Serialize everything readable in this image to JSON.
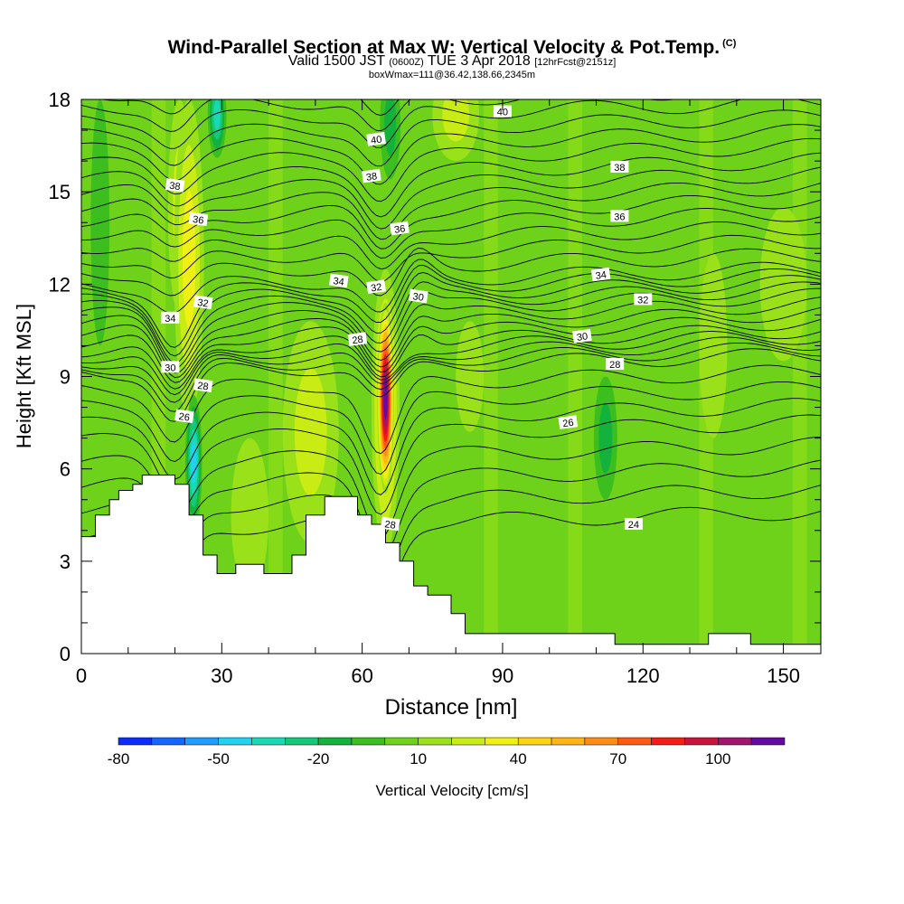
{
  "header": {
    "title": "Wind-Parallel Section at Max W: Vertical Velocity & Pot.Temp.",
    "title_mark": "(C)",
    "valid_prefix": "Valid 1500 JST",
    "valid_utc": "(0600Z)",
    "valid_date": "TUE 3 Apr 2018",
    "forecast_info": "[12hrFcst@2151z]",
    "box_info": "boxWmax=111@36.42,138.66,2345m"
  },
  "chart_data": {
    "type": "heatmap",
    "title": "Wind-Parallel Section at Max W: Vertical Velocity & Pot.Temp.",
    "xlabel": "Distance [nm]",
    "ylabel": "Height [Kft MSL]",
    "xlim": [
      0,
      158
    ],
    "ylim": [
      0,
      18
    ],
    "x_ticks": [
      0,
      30,
      60,
      90,
      120,
      150
    ],
    "y_ticks": [
      0,
      3,
      6,
      9,
      12,
      15,
      18
    ],
    "colorbar": {
      "label": "Vertical Velocity [cm/s]",
      "tick_labels": [
        "-80",
        "-50",
        "-20",
        "10",
        "40",
        "70",
        "100"
      ],
      "tick_values": [
        -80,
        -50,
        -20,
        10,
        40,
        70,
        100
      ],
      "min": -80,
      "max": 120,
      "step": 10,
      "colors": [
        "#0a2cff",
        "#1466ff",
        "#1e9cff",
        "#1fd2f0",
        "#19d9b4",
        "#14c87a",
        "#13b23c",
        "#3cbe1e",
        "#6ed21a",
        "#9ae11a",
        "#c8ec14",
        "#f0f014",
        "#ffd214",
        "#ffb414",
        "#ff8c14",
        "#ff5a14",
        "#f01e14",
        "#c8143c",
        "#a0146e",
        "#640aa0"
      ]
    },
    "background_w": 5,
    "terrain": [
      [
        0,
        3.8
      ],
      [
        3,
        3.8
      ],
      [
        3,
        4.5
      ],
      [
        6,
        4.5
      ],
      [
        6,
        5.0
      ],
      [
        8,
        5.0
      ],
      [
        8,
        5.3
      ],
      [
        11,
        5.3
      ],
      [
        11,
        5.5
      ],
      [
        13,
        5.5
      ],
      [
        13,
        5.8
      ],
      [
        20,
        5.8
      ],
      [
        20,
        5.5
      ],
      [
        23,
        5.5
      ],
      [
        23,
        4.5
      ],
      [
        26,
        4.5
      ],
      [
        26,
        3.2
      ],
      [
        29,
        3.2
      ],
      [
        29,
        2.6
      ],
      [
        33,
        2.6
      ],
      [
        33,
        2.9
      ],
      [
        39,
        2.9
      ],
      [
        39,
        2.6
      ],
      [
        45,
        2.6
      ],
      [
        45,
        3.2
      ],
      [
        48,
        3.2
      ],
      [
        48,
        4.5
      ],
      [
        52,
        4.5
      ],
      [
        52,
        5.1
      ],
      [
        59,
        5.1
      ],
      [
        59,
        4.5
      ],
      [
        62,
        4.5
      ],
      [
        62,
        4.2
      ],
      [
        65,
        4.2
      ],
      [
        65,
        3.6
      ],
      [
        68,
        3.6
      ],
      [
        68,
        3.0
      ],
      [
        71,
        3.0
      ],
      [
        71,
        2.2
      ],
      [
        74,
        2.2
      ],
      [
        74,
        1.9
      ],
      [
        79,
        1.9
      ],
      [
        79,
        1.3
      ],
      [
        82,
        1.3
      ],
      [
        82,
        0.65
      ],
      [
        114,
        0.65
      ],
      [
        114,
        0.3
      ],
      [
        134,
        0.3
      ],
      [
        134,
        0.65
      ],
      [
        143,
        0.65
      ],
      [
        143,
        0.3
      ],
      [
        158,
        0.3
      ]
    ],
    "w_features": [
      {
        "x": 65,
        "y": 8.3,
        "rx": 1.8,
        "ry": 3.1,
        "w": 120
      },
      {
        "x": 65,
        "y": 7.9,
        "rx": 3.0,
        "ry": 4.6,
        "w": 50
      },
      {
        "x": 49,
        "y": 7.2,
        "rx": 6.0,
        "ry": 3.6,
        "w": 30
      },
      {
        "x": 23,
        "y": 12.8,
        "rx": 3.2,
        "ry": 5.2,
        "w": 40
      },
      {
        "x": 21,
        "y": 14.5,
        "rx": 2.5,
        "ry": 3.5,
        "w": 25
      },
      {
        "x": 24,
        "y": 6.2,
        "rx": 1.8,
        "ry": 2.2,
        "w": -50
      },
      {
        "x": 29,
        "y": 17.5,
        "rx": 2.0,
        "ry": 1.4,
        "w": -40
      },
      {
        "x": 66,
        "y": 17.2,
        "rx": 2.2,
        "ry": 1.8,
        "w": -20
      },
      {
        "x": 4,
        "y": 14,
        "rx": 2.0,
        "ry": 4.0,
        "w": -10
      },
      {
        "x": 80,
        "y": 17.5,
        "rx": 5.0,
        "ry": 1.5,
        "w": 30
      },
      {
        "x": 83,
        "y": 9,
        "rx": 3.0,
        "ry": 1.8,
        "w": 20
      },
      {
        "x": 112,
        "y": 7.0,
        "rx": 2.5,
        "ry": 2.0,
        "w": -15
      },
      {
        "x": 36,
        "y": 4.5,
        "rx": 4.0,
        "ry": 2.5,
        "w": 15
      },
      {
        "x": 135,
        "y": 10,
        "rx": 3.0,
        "ry": 3.0,
        "w": 15
      },
      {
        "x": 150,
        "y": 12,
        "rx": 5.0,
        "ry": 2.5,
        "w": 15
      }
    ],
    "theta_levels": [
      24,
      26,
      28,
      30,
      32,
      34,
      36,
      38,
      40
    ],
    "theta_labels": [
      {
        "text": "40",
        "x": 63,
        "y": 16.7
      },
      {
        "text": "40",
        "x": 90,
        "y": 17.6
      },
      {
        "text": "38",
        "x": 20,
        "y": 15.2
      },
      {
        "text": "38",
        "x": 62,
        "y": 15.5
      },
      {
        "text": "38",
        "x": 115,
        "y": 15.8
      },
      {
        "text": "36",
        "x": 25,
        "y": 14.1
      },
      {
        "text": "36",
        "x": 68,
        "y": 13.8
      },
      {
        "text": "36",
        "x": 115,
        "y": 14.2
      },
      {
        "text": "34",
        "x": 55,
        "y": 12.1
      },
      {
        "text": "34",
        "x": 111,
        "y": 12.3
      },
      {
        "text": "34",
        "x": 19,
        "y": 10.9
      },
      {
        "text": "32",
        "x": 26,
        "y": 11.4
      },
      {
        "text": "32",
        "x": 63,
        "y": 11.9
      },
      {
        "text": "32",
        "x": 120,
        "y": 11.5
      },
      {
        "text": "30",
        "x": 72,
        "y": 11.6
      },
      {
        "text": "30",
        "x": 107,
        "y": 10.3
      },
      {
        "text": "30",
        "x": 19,
        "y": 9.3
      },
      {
        "text": "28",
        "x": 26,
        "y": 8.7
      },
      {
        "text": "28",
        "x": 59,
        "y": 10.2
      },
      {
        "text": "28",
        "x": 114,
        "y": 9.4
      },
      {
        "text": "26",
        "x": 22,
        "y": 7.7
      },
      {
        "text": "26",
        "x": 104,
        "y": 7.5
      },
      {
        "text": "24",
        "x": 118,
        "y": 4.2
      },
      {
        "text": "28",
        "x": 66,
        "y": 4.2
      }
    ]
  }
}
